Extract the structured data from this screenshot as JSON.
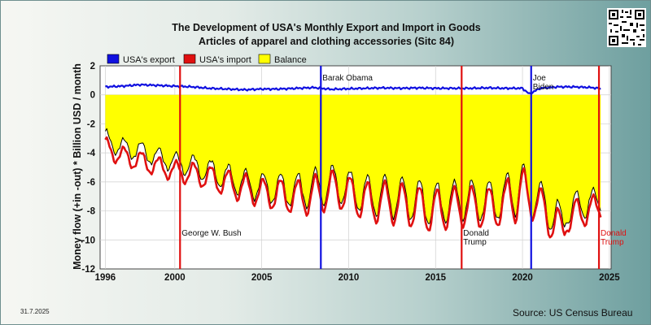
{
  "title_line1": "The Development of USA's Monthly Export and Import in Goods",
  "title_line2": "Articles of apparel and clothing accessories (Sitc 84)",
  "date": "31.7.2025",
  "source": "Source: US Census Bureau",
  "chart_data": {
    "type": "area",
    "title": "The Development of USA's Monthly Export and Import in Goods — Articles of apparel and clothing accessories (Sitc 84)",
    "ylabel": "Money flow (+in -out) * Billion USD / month",
    "xlabel": "",
    "xlim": [
      1995.7,
      2025.1
    ],
    "ylim": [
      -12,
      2
    ],
    "x_ticks": [
      1996,
      2000,
      2005,
      2010,
      2015,
      2020,
      2025
    ],
    "y_ticks": [
      2,
      0,
      -2,
      -4,
      -6,
      -8,
      -10,
      -12
    ],
    "grid": true,
    "legend": {
      "placement": "top-left",
      "entries": [
        {
          "label": "USA's export",
          "color": "#1010e0"
        },
        {
          "label": "USA's import",
          "color": "#e01010"
        },
        {
          "label": "Balance",
          "color": "#ffff00"
        }
      ]
    },
    "series": [
      {
        "name": "USA's export",
        "color": "#1010e0",
        "note": "monthly, approx. 0.4–0.7",
        "points": [
          [
            1996.0,
            0.55
          ],
          [
            1997.0,
            0.6
          ],
          [
            1998.0,
            0.7
          ],
          [
            1999.0,
            0.65
          ],
          [
            2000.0,
            0.6
          ],
          [
            2001.0,
            0.55
          ],
          [
            2002.0,
            0.45
          ],
          [
            2003.0,
            0.4
          ],
          [
            2004.0,
            0.35
          ],
          [
            2005.0,
            0.4
          ],
          [
            2006.0,
            0.4
          ],
          [
            2007.0,
            0.45
          ],
          [
            2008.0,
            0.5
          ],
          [
            2009.0,
            0.38
          ],
          [
            2010.0,
            0.42
          ],
          [
            2011.0,
            0.45
          ],
          [
            2012.0,
            0.48
          ],
          [
            2013.0,
            0.45
          ],
          [
            2014.0,
            0.48
          ],
          [
            2015.0,
            0.45
          ],
          [
            2016.0,
            0.45
          ],
          [
            2017.0,
            0.45
          ],
          [
            2018.0,
            0.48
          ],
          [
            2019.0,
            0.45
          ],
          [
            2020.0,
            0.45
          ],
          [
            2020.4,
            0.05
          ],
          [
            2021.0,
            0.45
          ],
          [
            2022.0,
            0.55
          ],
          [
            2023.0,
            0.55
          ],
          [
            2024.0,
            0.5
          ],
          [
            2024.5,
            0.42
          ]
        ]
      },
      {
        "name": "USA's import",
        "color": "#e01010",
        "note": "monthly, seasonal pattern; trough values",
        "envelope_high": [
          [
            1996.0,
            -3.0
          ],
          [
            1997.0,
            -3.6
          ],
          [
            1998.0,
            -3.9
          ],
          [
            1999.0,
            -4.3
          ],
          [
            2000.0,
            -4.6
          ],
          [
            2001.0,
            -4.7
          ],
          [
            2002.0,
            -4.9
          ],
          [
            2003.0,
            -5.2
          ],
          [
            2004.0,
            -5.5
          ],
          [
            2005.0,
            -5.8
          ],
          [
            2006.0,
            -5.8
          ],
          [
            2007.0,
            -5.9
          ],
          [
            2008.0,
            -5.6
          ],
          [
            2009.0,
            -5.2
          ],
          [
            2010.0,
            -5.6
          ],
          [
            2011.0,
            -6.0
          ],
          [
            2012.0,
            -6.0
          ],
          [
            2013.0,
            -6.1
          ],
          [
            2014.0,
            -6.3
          ],
          [
            2015.0,
            -6.5
          ],
          [
            2016.0,
            -6.4
          ],
          [
            2017.0,
            -6.3
          ],
          [
            2018.0,
            -6.4
          ],
          [
            2019.0,
            -6.2
          ],
          [
            2019.6,
            -4.2
          ],
          [
            2020.4,
            -5.8
          ],
          [
            2021.0,
            -6.4
          ],
          [
            2021.8,
            -7.3
          ],
          [
            2022.0,
            -7.6
          ],
          [
            2022.5,
            -9.0
          ],
          [
            2023.0,
            -7.2
          ],
          [
            2024.0,
            -6.9
          ],
          [
            2024.5,
            -7.3
          ]
        ],
        "envelope_low": [
          [
            1996.0,
            -4.3
          ],
          [
            1997.0,
            -4.9
          ],
          [
            1998.0,
            -5.2
          ],
          [
            1999.0,
            -5.6
          ],
          [
            2000.0,
            -5.9
          ],
          [
            2001.0,
            -6.2
          ],
          [
            2002.0,
            -6.5
          ],
          [
            2003.0,
            -7.0
          ],
          [
            2004.0,
            -7.4
          ],
          [
            2005.0,
            -7.7
          ],
          [
            2006.0,
            -8.0
          ],
          [
            2007.0,
            -8.2
          ],
          [
            2008.0,
            -8.3
          ],
          [
            2009.0,
            -7.8
          ],
          [
            2010.0,
            -8.0
          ],
          [
            2011.0,
            -8.8
          ],
          [
            2012.0,
            -8.8
          ],
          [
            2013.0,
            -9.0
          ],
          [
            2014.0,
            -9.2
          ],
          [
            2015.0,
            -9.6
          ],
          [
            2016.0,
            -9.0
          ],
          [
            2017.0,
            -9.1
          ],
          [
            2018.0,
            -9.2
          ],
          [
            2019.0,
            -9.0
          ],
          [
            2019.6,
            -8.8
          ],
          [
            2020.4,
            -8.5
          ],
          [
            2021.0,
            -8.7
          ],
          [
            2021.8,
            -10.3
          ],
          [
            2022.0,
            -11.3
          ],
          [
            2022.5,
            -9.5
          ],
          [
            2023.0,
            -9.3
          ],
          [
            2024.0,
            -8.8
          ],
          [
            2024.5,
            -8.5
          ]
        ]
      },
      {
        "name": "Balance",
        "color": "#ffff00",
        "note": "filled area from 0 to balance (export minus import)"
      }
    ],
    "vertical_markers": [
      {
        "x": 2000.3,
        "color": "#e01010",
        "label": "George W. Bush",
        "label_y": -9.7
      },
      {
        "x": 2008.4,
        "color": "#1010e0",
        "label": "Barak Obama",
        "label_y": 1.0
      },
      {
        "x": 2016.5,
        "color": "#e01010",
        "label": "Donald Trump",
        "label_y": -9.7
      },
      {
        "x": 2020.5,
        "color": "#1010e0",
        "label": "Joe Biden",
        "label_y": 1.0
      },
      {
        "x": 2024.4,
        "color": "#e01010",
        "label": "Donald Trump",
        "label_y": -9.7
      }
    ],
    "ytick_labels": [
      "2",
      "0",
      "-2",
      "-4",
      "-6",
      "-8",
      "-10",
      "-12"
    ],
    "xtick_labels": [
      "1996",
      "2000",
      "2005",
      "2010",
      "2015",
      "2020",
      "2025"
    ]
  }
}
